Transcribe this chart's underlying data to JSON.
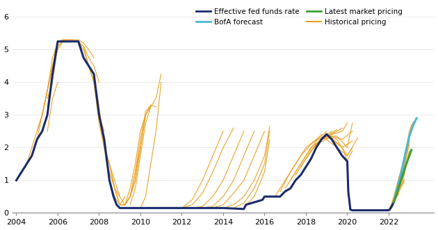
{
  "ylim": [
    0,
    6.4
  ],
  "xlim": [
    2003.8,
    2024.2
  ],
  "yticks": [
    0,
    1,
    2,
    3,
    4,
    5,
    6
  ],
  "xticks": [
    2004,
    2006,
    2008,
    2010,
    2012,
    2014,
    2016,
    2018,
    2020,
    2022
  ],
  "background_color": "#ffffff",
  "effective_color": "#1a2a6c",
  "bofa_color": "#4bb8d4",
  "market_color": "#3d9e3d",
  "historical_color": "#e8a020",
  "effective_fed_funds": {
    "x": [
      2004.0,
      2004.25,
      2004.5,
      2004.75,
      2005.0,
      2005.25,
      2005.5,
      2005.75,
      2006.0,
      2006.5,
      2007.0,
      2007.25,
      2007.5,
      2007.75,
      2008.0,
      2008.25,
      2008.5,
      2008.7,
      2008.85,
      2009.0,
      2009.5,
      2010.0,
      2011.0,
      2012.0,
      2013.0,
      2014.0,
      2015.0,
      2015.1,
      2015.9,
      2016.0,
      2016.25,
      2016.5,
      2016.75,
      2017.0,
      2017.25,
      2017.5,
      2017.75,
      2018.0,
      2018.25,
      2018.5,
      2018.75,
      2019.0,
      2019.25,
      2019.5,
      2019.75,
      2020.0,
      2020.05,
      2020.15,
      2020.25,
      2020.5,
      2021.0,
      2021.5,
      2022.0,
      2022.05,
      2022.15,
      2022.25
    ],
    "y": [
      1.0,
      1.25,
      1.5,
      1.75,
      2.25,
      2.5,
      3.0,
      4.25,
      5.25,
      5.25,
      5.25,
      4.75,
      4.5,
      4.25,
      3.0,
      2.25,
      1.0,
      0.5,
      0.25,
      0.15,
      0.15,
      0.15,
      0.15,
      0.15,
      0.15,
      0.15,
      0.12,
      0.25,
      0.4,
      0.5,
      0.5,
      0.5,
      0.5,
      0.66,
      0.75,
      1.0,
      1.16,
      1.41,
      1.66,
      2.0,
      2.25,
      2.41,
      2.25,
      2.0,
      1.75,
      1.58,
      0.65,
      0.1,
      0.08,
      0.08,
      0.08,
      0.08,
      0.08,
      0.1,
      0.2,
      0.33
    ]
  },
  "bofa_forecast": {
    "x": [
      2022.25,
      2022.4,
      2022.6,
      2022.8,
      2023.0,
      2023.2,
      2023.35
    ],
    "y": [
      0.33,
      0.7,
      1.2,
      1.8,
      2.35,
      2.7,
      2.9
    ]
  },
  "latest_market": {
    "x": [
      2022.25,
      2022.4,
      2022.6,
      2022.8,
      2023.0,
      2023.1
    ],
    "y": [
      0.33,
      0.6,
      1.0,
      1.4,
      1.75,
      1.93
    ]
  },
  "historical_curves": [
    {
      "x": [
        2004.5,
        2004.75,
        2005.0,
        2005.25,
        2005.5,
        2005.75,
        2006.0
      ],
      "y": [
        1.5,
        2.0,
        2.5,
        3.0,
        3.75,
        4.5,
        5.0
      ]
    },
    {
      "x": [
        2004.75,
        2005.0,
        2005.25,
        2005.5,
        2005.75,
        2006.0,
        2006.25
      ],
      "y": [
        1.75,
        2.25,
        3.0,
        3.75,
        4.5,
        5.0,
        5.25
      ]
    },
    {
      "x": [
        2005.0,
        2005.25,
        2005.5,
        2005.75,
        2006.0,
        2006.25
      ],
      "y": [
        2.5,
        3.0,
        3.75,
        4.75,
        5.2,
        5.3
      ]
    },
    {
      "x": [
        2005.25,
        2005.5,
        2005.75,
        2006.0,
        2006.25,
        2006.5
      ],
      "y": [
        3.0,
        3.75,
        4.5,
        5.2,
        5.3,
        5.3
      ]
    },
    {
      "x": [
        2005.5,
        2005.75,
        2006.0,
        2006.25,
        2006.5,
        2006.75
      ],
      "y": [
        3.5,
        4.0,
        5.1,
        5.25,
        5.3,
        5.3
      ]
    },
    {
      "x": [
        2005.5,
        2005.75,
        2006.0,
        2006.25
      ],
      "y": [
        3.25,
        4.2,
        5.1,
        5.25
      ]
    },
    {
      "x": [
        2005.5,
        2005.75,
        2006.0
      ],
      "y": [
        2.5,
        3.5,
        4.0
      ]
    },
    {
      "x": [
        2006.0,
        2006.25,
        2006.5,
        2007.0,
        2007.25,
        2007.5,
        2007.75
      ],
      "y": [
        5.25,
        5.3,
        5.3,
        5.3,
        5.2,
        5.0,
        4.75
      ]
    },
    {
      "x": [
        2006.5,
        2007.0,
        2007.25,
        2007.5,
        2007.75,
        2008.0
      ],
      "y": [
        5.25,
        5.25,
        5.1,
        4.75,
        4.5,
        4.0
      ]
    },
    {
      "x": [
        2007.0,
        2007.25,
        2007.5,
        2007.75,
        2008.0,
        2008.25
      ],
      "y": [
        5.25,
        5.0,
        4.5,
        4.0,
        3.0,
        2.5
      ]
    },
    {
      "x": [
        2007.25,
        2007.5,
        2007.75,
        2008.0,
        2008.25,
        2008.5
      ],
      "y": [
        5.1,
        4.5,
        4.0,
        3.0,
        2.0,
        1.5
      ]
    },
    {
      "x": [
        2007.5,
        2007.75,
        2008.0,
        2008.25,
        2008.5,
        2008.75
      ],
      "y": [
        4.5,
        4.0,
        2.75,
        2.0,
        1.5,
        1.0
      ]
    },
    {
      "x": [
        2007.75,
        2008.0,
        2008.25,
        2008.5,
        2008.75,
        2009.0
      ],
      "y": [
        4.25,
        3.25,
        2.0,
        1.5,
        0.75,
        0.5
      ]
    },
    {
      "x": [
        2008.0,
        2008.25,
        2008.5,
        2008.75,
        2009.0,
        2009.25
      ],
      "y": [
        3.0,
        2.0,
        1.0,
        0.5,
        0.25,
        0.5
      ]
    },
    {
      "x": [
        2008.25,
        2008.5,
        2008.75,
        2009.0,
        2009.25,
        2009.5,
        2009.75,
        2010.0
      ],
      "y": [
        2.0,
        1.25,
        0.75,
        0.25,
        0.25,
        0.5,
        1.25,
        2.0
      ]
    },
    {
      "x": [
        2008.5,
        2008.75,
        2009.0,
        2009.25,
        2009.5,
        2009.75,
        2010.0,
        2010.25
      ],
      "y": [
        1.5,
        0.75,
        0.25,
        0.25,
        0.75,
        1.5,
        2.5,
        3.0
      ]
    },
    {
      "x": [
        2008.75,
        2009.0,
        2009.25,
        2009.5,
        2009.75,
        2010.0,
        2010.25,
        2010.5
      ],
      "y": [
        1.0,
        0.5,
        0.25,
        0.5,
        1.0,
        2.0,
        3.0,
        3.25
      ]
    },
    {
      "x": [
        2009.0,
        2009.25,
        2009.5,
        2009.75,
        2010.0,
        2010.25,
        2010.5
      ],
      "y": [
        0.25,
        0.25,
        0.5,
        1.0,
        2.0,
        3.0,
        3.3
      ]
    },
    {
      "x": [
        2009.25,
        2009.5,
        2009.75,
        2010.0,
        2010.25,
        2010.5,
        2010.75
      ],
      "y": [
        0.25,
        0.5,
        1.25,
        2.25,
        3.1,
        3.3,
        3.25
      ]
    },
    {
      "x": [
        2009.5,
        2009.75,
        2010.0,
        2010.25,
        2010.5,
        2010.75,
        2011.0
      ],
      "y": [
        0.25,
        0.75,
        1.75,
        2.75,
        3.25,
        3.5,
        4.25
      ]
    },
    {
      "x": [
        2010.0,
        2010.25,
        2010.5,
        2010.75,
        2011.0
      ],
      "y": [
        0.15,
        0.5,
        1.5,
        2.5,
        4.0
      ]
    },
    {
      "x": [
        2011.5,
        2012.0,
        2012.5,
        2013.0,
        2013.5,
        2014.0
      ],
      "y": [
        0.15,
        0.15,
        0.4,
        1.0,
        1.75,
        2.5
      ]
    },
    {
      "x": [
        2012.0,
        2012.5,
        2013.0,
        2013.5,
        2014.0,
        2014.5
      ],
      "y": [
        0.15,
        0.25,
        0.6,
        1.25,
        2.0,
        2.6
      ]
    },
    {
      "x": [
        2012.5,
        2013.0,
        2013.5,
        2014.0,
        2014.5,
        2015.0
      ],
      "y": [
        0.15,
        0.2,
        0.5,
        1.0,
        1.75,
        2.5
      ]
    },
    {
      "x": [
        2013.0,
        2013.5,
        2014.0,
        2014.5,
        2015.0,
        2015.5
      ],
      "y": [
        0.15,
        0.2,
        0.5,
        1.0,
        1.75,
        2.5
      ]
    },
    {
      "x": [
        2013.5,
        2014.0,
        2014.5,
        2015.0,
        2015.5,
        2016.0
      ],
      "y": [
        0.15,
        0.25,
        0.6,
        1.0,
        1.75,
        2.5
      ]
    },
    {
      "x": [
        2014.0,
        2014.5,
        2015.0,
        2015.5,
        2016.0,
        2016.25
      ],
      "y": [
        0.15,
        0.25,
        0.5,
        1.0,
        1.75,
        2.65
      ]
    },
    {
      "x": [
        2014.5,
        2015.0,
        2015.5,
        2016.0,
        2016.25
      ],
      "y": [
        0.15,
        0.3,
        0.75,
        1.5,
        2.5
      ]
    },
    {
      "x": [
        2015.0,
        2015.5,
        2016.0,
        2016.25
      ],
      "y": [
        0.15,
        0.5,
        1.25,
        2.25
      ]
    },
    {
      "x": [
        2016.5,
        2017.0,
        2017.5,
        2018.0,
        2018.5,
        2018.75
      ],
      "y": [
        0.5,
        1.0,
        1.5,
        2.0,
        2.25,
        2.4
      ]
    },
    {
      "x": [
        2016.75,
        2017.25,
        2017.75,
        2018.25,
        2018.75,
        2019.0
      ],
      "y": [
        0.66,
        1.25,
        1.75,
        2.1,
        2.35,
        2.5
      ]
    },
    {
      "x": [
        2017.0,
        2017.5,
        2018.0,
        2018.5,
        2019.0,
        2019.25
      ],
      "y": [
        0.75,
        1.25,
        1.75,
        2.2,
        2.4,
        2.5
      ]
    },
    {
      "x": [
        2017.25,
        2017.75,
        2018.25,
        2018.75,
        2019.25,
        2019.5
      ],
      "y": [
        1.0,
        1.5,
        2.0,
        2.25,
        2.45,
        2.55
      ]
    },
    {
      "x": [
        2017.5,
        2018.0,
        2018.5,
        2019.0,
        2019.5,
        2019.75
      ],
      "y": [
        1.16,
        1.66,
        2.1,
        2.35,
        2.5,
        2.6
      ]
    },
    {
      "x": [
        2017.75,
        2018.25,
        2018.75,
        2019.25,
        2019.75,
        2020.0
      ],
      "y": [
        1.41,
        1.91,
        2.25,
        2.4,
        2.5,
        2.75
      ]
    },
    {
      "x": [
        2018.0,
        2018.5,
        2019.0,
        2019.5,
        2020.0,
        2020.25
      ],
      "y": [
        1.66,
        2.1,
        2.35,
        2.35,
        2.0,
        2.75
      ]
    },
    {
      "x": [
        2018.25,
        2018.75,
        2019.25,
        2019.75,
        2020.25
      ],
      "y": [
        2.0,
        2.25,
        2.35,
        2.25,
        2.5
      ]
    },
    {
      "x": [
        2018.5,
        2019.0,
        2019.5,
        2020.0,
        2020.5
      ],
      "y": [
        2.1,
        2.25,
        2.0,
        1.75,
        2.3
      ]
    },
    {
      "x": [
        2018.75,
        2019.25,
        2019.75,
        2020.25
      ],
      "y": [
        2.25,
        2.3,
        2.0,
        2.2
      ]
    },
    {
      "x": [
        2019.0,
        2019.5,
        2020.0,
        2020.25
      ],
      "y": [
        2.41,
        2.25,
        1.75,
        2.0
      ]
    },
    {
      "x": [
        2019.25,
        2019.75,
        2020.0,
        2020.25
      ],
      "y": [
        2.25,
        2.0,
        1.6,
        1.9
      ]
    },
    {
      "x": [
        2021.5,
        2022.0,
        2022.25,
        2022.5,
        2022.75,
        2023.0,
        2023.2
      ],
      "y": [
        0.08,
        0.1,
        0.4,
        1.0,
        1.6,
        2.5,
        2.8
      ]
    },
    {
      "x": [
        2021.75,
        2022.0,
        2022.25,
        2022.5,
        2022.75,
        2023.0
      ],
      "y": [
        0.08,
        0.1,
        0.35,
        0.9,
        1.4,
        2.3
      ]
    },
    {
      "x": [
        2022.0,
        2022.1,
        2022.25,
        2022.5,
        2022.75,
        2023.0
      ],
      "y": [
        0.1,
        0.15,
        0.33,
        0.85,
        1.3,
        2.2
      ]
    },
    {
      "x": [
        2022.0,
        2022.1,
        2022.25,
        2022.5,
        2022.75
      ],
      "y": [
        0.1,
        0.15,
        0.33,
        0.8,
        1.2
      ]
    },
    {
      "x": [
        2022.0,
        2022.1,
        2022.25,
        2022.5,
        2022.75
      ],
      "y": [
        0.1,
        0.15,
        0.33,
        0.75,
        1.0
      ]
    },
    {
      "x": [
        2022.0,
        2022.1,
        2022.25,
        2022.5
      ],
      "y": [
        0.1,
        0.15,
        0.33,
        0.7
      ]
    },
    {
      "x": [
        2022.0,
        2022.1,
        2022.25,
        2022.5
      ],
      "y": [
        0.1,
        0.15,
        0.33,
        0.6
      ]
    },
    {
      "x": [
        2022.0,
        2022.1,
        2022.25
      ],
      "y": [
        0.1,
        0.15,
        0.33
      ]
    },
    {
      "x": [
        2022.1,
        2022.25,
        2022.5,
        2022.75,
        2023.0,
        2023.1
      ],
      "y": [
        0.2,
        0.5,
        1.1,
        1.65,
        2.4,
        2.7
      ]
    },
    {
      "x": [
        2022.1,
        2022.25,
        2022.5,
        2022.75,
        2023.0
      ],
      "y": [
        0.15,
        0.4,
        1.0,
        1.5,
        2.1
      ]
    },
    {
      "x": [
        2022.15,
        2022.25,
        2022.5,
        2022.75
      ],
      "y": [
        0.2,
        0.4,
        0.9,
        1.3
      ]
    },
    {
      "x": [
        2022.2,
        2022.25,
        2022.5,
        2022.75,
        2023.0
      ],
      "y": [
        0.25,
        0.4,
        0.8,
        1.2,
        1.9
      ]
    },
    {
      "x": [
        2022.2,
        2022.25,
        2022.5,
        2022.75
      ],
      "y": [
        0.25,
        0.35,
        0.7,
        1.05
      ]
    },
    {
      "x": [
        2022.25,
        2022.5,
        2022.75,
        2023.0
      ],
      "y": [
        0.33,
        0.75,
        1.15,
        1.85
      ]
    },
    {
      "x": [
        2022.25,
        2022.5,
        2022.75
      ],
      "y": [
        0.33,
        0.65,
        0.95
      ]
    }
  ]
}
